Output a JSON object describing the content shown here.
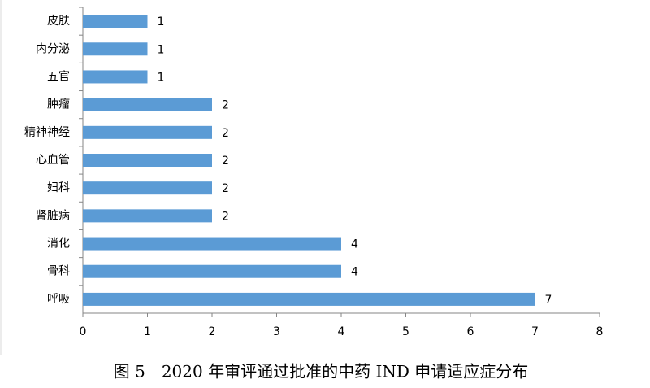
{
  "chart_data": {
    "type": "hbar",
    "caption": "图 5　2020 年审评通过批准的中药 IND 申请适应症分布",
    "categories": [
      "皮肤",
      "内分泌",
      "五官",
      "肿瘤",
      "精神神经",
      "心血管",
      "妇科",
      "肾脏病",
      "消化",
      "骨科",
      "呼吸"
    ],
    "values": [
      1,
      1,
      1,
      2,
      2,
      2,
      2,
      2,
      4,
      4,
      7
    ],
    "color": "#5b9bd5",
    "xlim": [
      0,
      8
    ],
    "xticks": [
      0,
      1,
      2,
      3,
      4,
      5,
      6,
      7,
      8
    ],
    "grid": false
  }
}
